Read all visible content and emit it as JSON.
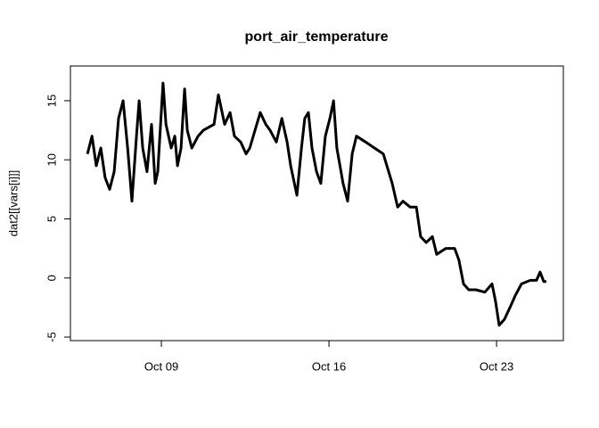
{
  "chart_data": {
    "type": "line",
    "title": "port_air_temperature",
    "y_label": "dat2[[vars[i]]]",
    "x": [
      5.91,
      6.1,
      6.28,
      6.47,
      6.65,
      6.84,
      7.03,
      7.21,
      7.4,
      7.59,
      7.77,
      7.96,
      8.07,
      8.22,
      8.4,
      8.59,
      8.74,
      8.85,
      9.07,
      9.19,
      9.41,
      9.56,
      9.67,
      9.82,
      9.97,
      10.08,
      10.27,
      10.53,
      10.75,
      11.2,
      11.38,
      11.64,
      11.87,
      12.05,
      12.31,
      12.54,
      12.69,
      12.91,
      13.13,
      13.36,
      13.54,
      13.8,
      14.03,
      14.25,
      14.4,
      14.66,
      14.85,
      14.99,
      15.14,
      15.29,
      15.48,
      15.66,
      15.85,
      16.04,
      16.19,
      16.33,
      16.59,
      16.78,
      16.97,
      17.15,
      17.53,
      17.9,
      18.27,
      18.64,
      18.87,
      19.09,
      19.39,
      19.65,
      19.83,
      20.06,
      20.32,
      20.5,
      20.88,
      21.25,
      21.43,
      21.62,
      21.84,
      22.14,
      22.51,
      22.81,
      22.96,
      23.11,
      23.33,
      23.56,
      23.78,
      24.04,
      24.41,
      24.67,
      24.82,
      24.97,
      25.08
    ],
    "series": [
      {
        "color": "#000000",
        "values": [
          10.5,
          12,
          9.5,
          11,
          8.5,
          7.5,
          9,
          13.5,
          15,
          11,
          6.5,
          12,
          15,
          11,
          9,
          13,
          8,
          9,
          16.5,
          13,
          11,
          12,
          9.5,
          11,
          16,
          12.5,
          11,
          12,
          12.5,
          13,
          15.5,
          13,
          14,
          12,
          11.5,
          10.5,
          11,
          12.5,
          14,
          13,
          12.5,
          11.5,
          13.5,
          11.5,
          9.5,
          7,
          11,
          13.5,
          14,
          11,
          9,
          8,
          12,
          13.5,
          15,
          11,
          8,
          6.5,
          10.5,
          12,
          11.5,
          11,
          10.5,
          8,
          6,
          6.5,
          6,
          6,
          3.5,
          3,
          3.5,
          2,
          2.5,
          2.5,
          1.5,
          -0.5,
          -1,
          -1,
          -1.2,
          -0.5,
          -2,
          -4,
          -3.5,
          -2.5,
          -1.5,
          -0.5,
          -0.2,
          -0.2,
          0.5,
          -0.3,
          -0.3
        ]
      }
    ],
    "xlim": [
      5.2,
      25.79
    ],
    "ylim": [
      -5.3,
      17.94
    ],
    "xticks": [
      {
        "value": 9,
        "label": "Oct 09"
      },
      {
        "value": 16,
        "label": "Oct 16"
      },
      {
        "value": 23,
        "label": "Oct 23"
      }
    ],
    "yticks": [
      -5,
      0,
      5,
      10,
      15
    ]
  }
}
